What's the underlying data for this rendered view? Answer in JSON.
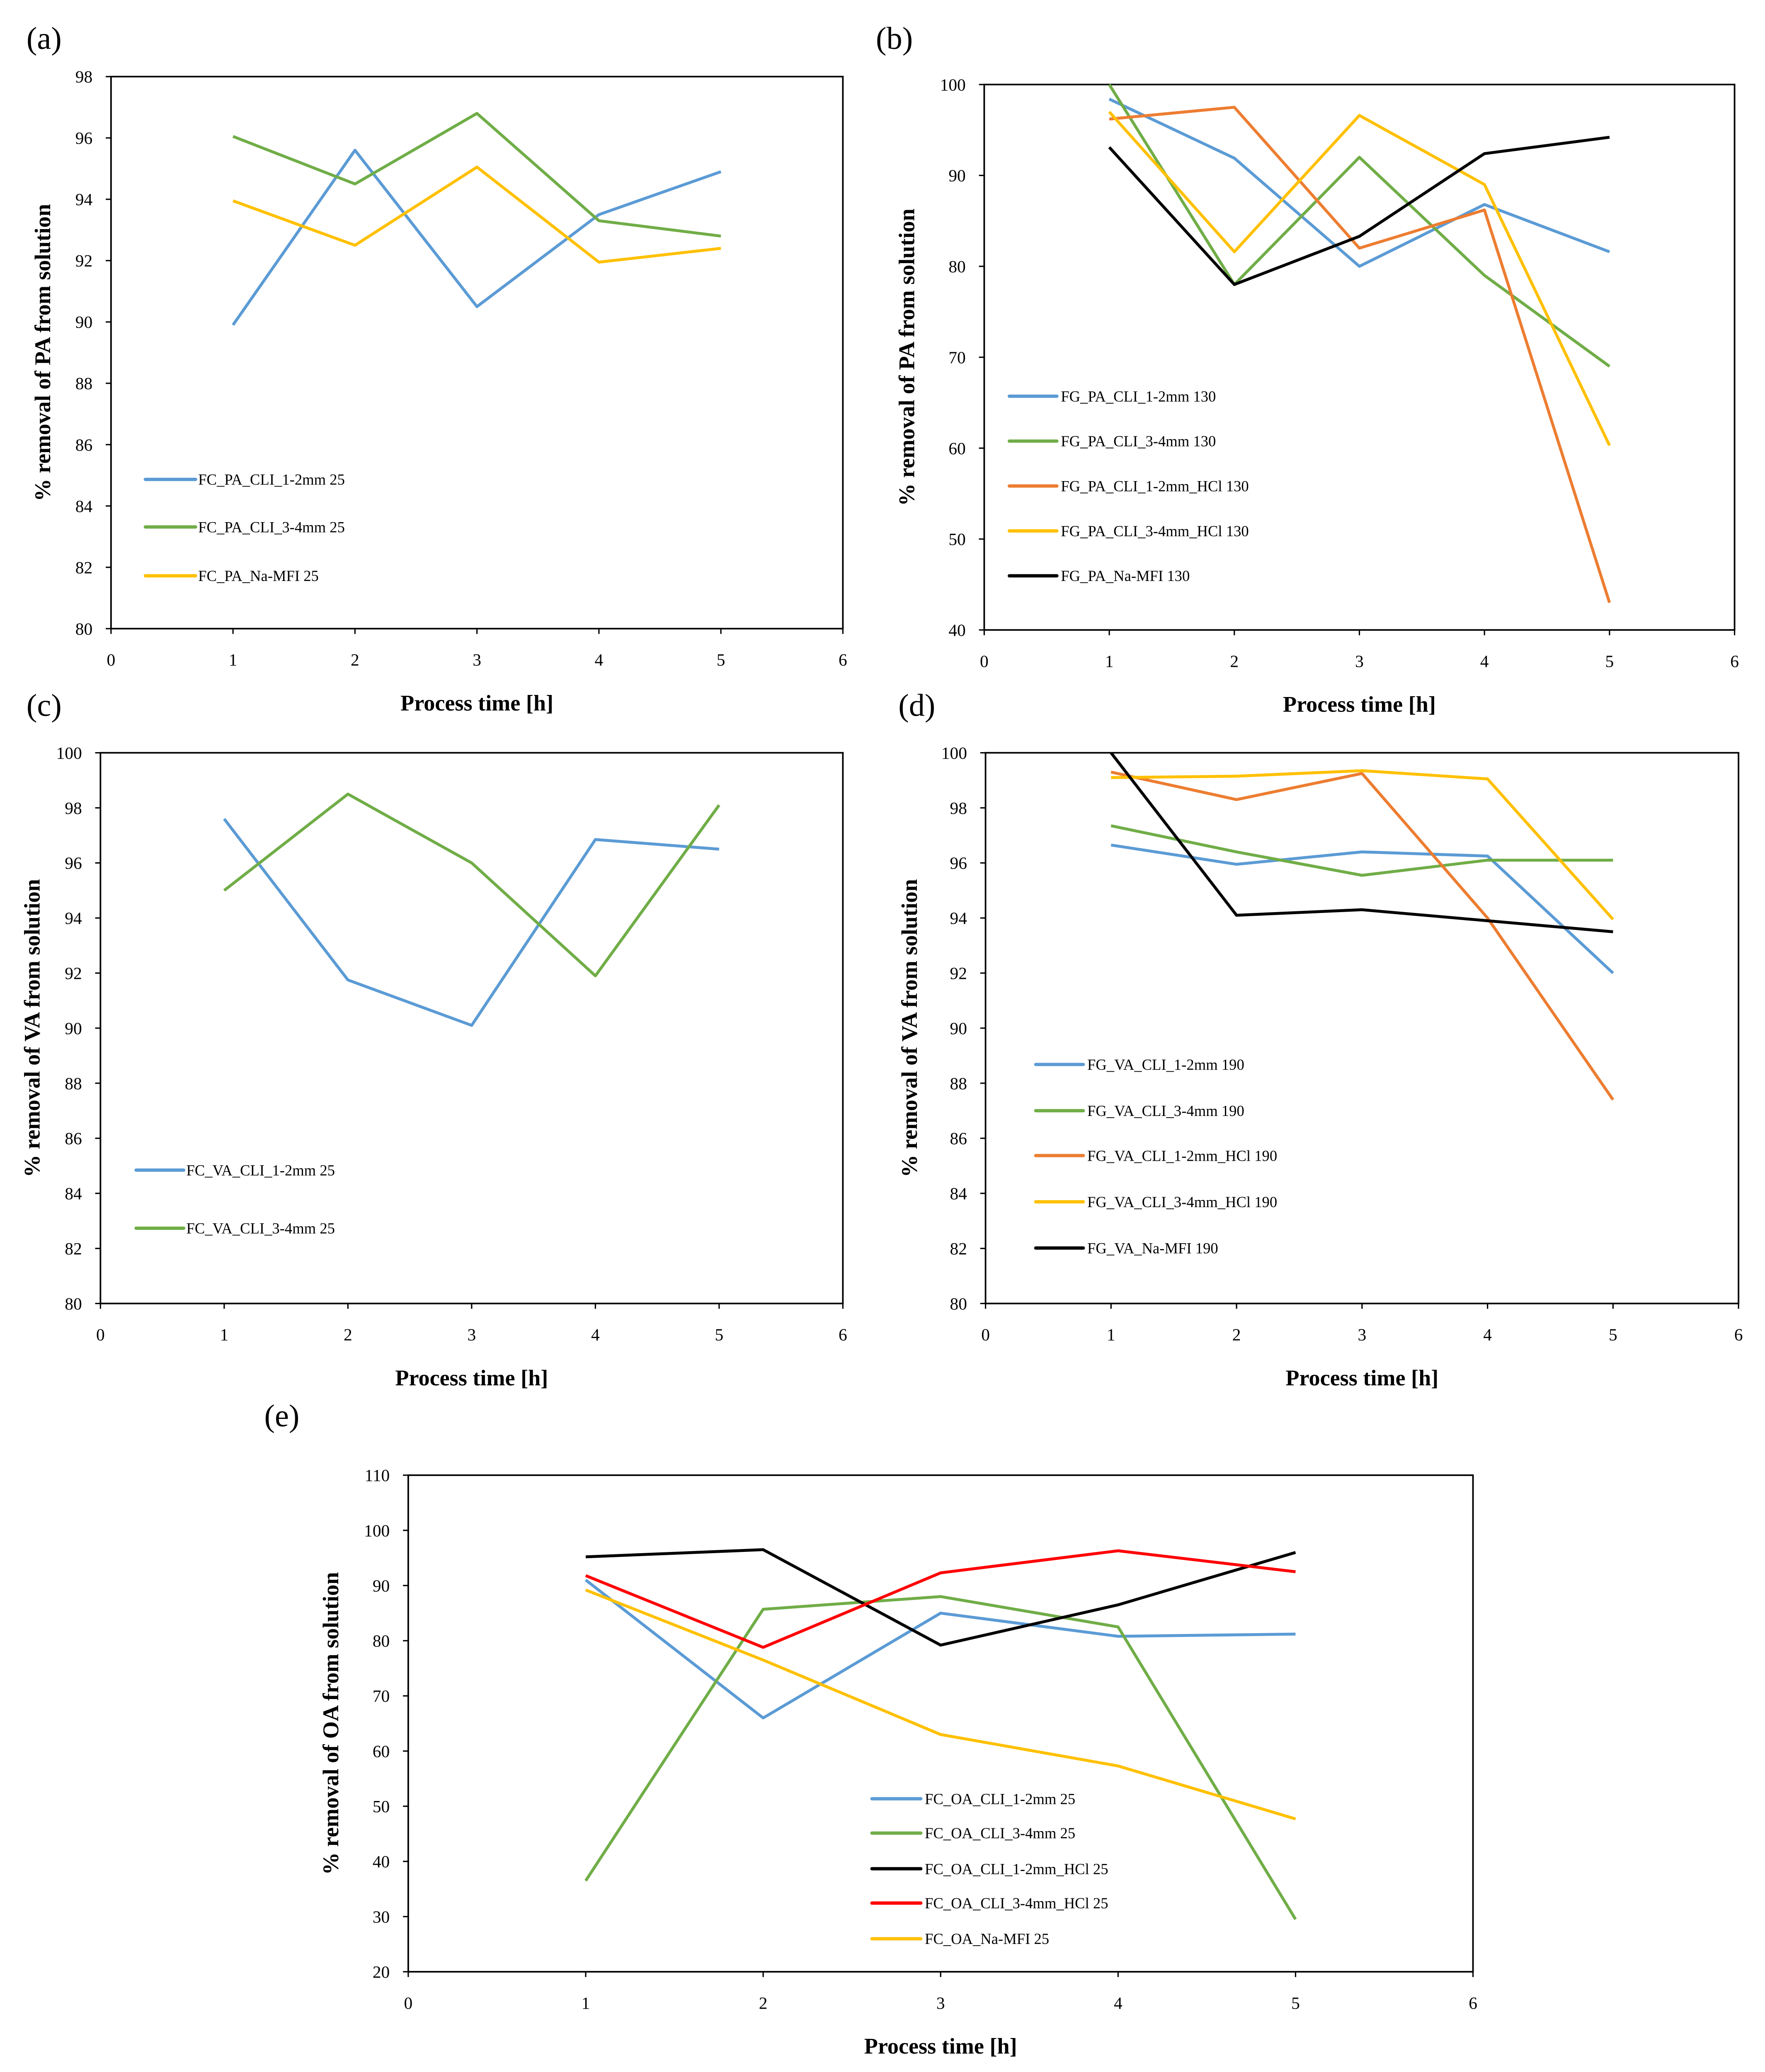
{
  "chart_data": [
    {
      "id": "a",
      "panel_label": "(a)",
      "type": "line",
      "xlabel": "Process time [h]",
      "ylabel": "% removal of PA from solution",
      "xlim": [
        0,
        6
      ],
      "ylim": [
        80,
        98
      ],
      "xticks": [
        0,
        1,
        2,
        3,
        4,
        5,
        6
      ],
      "yticks": [
        80,
        82,
        84,
        86,
        88,
        90,
        92,
        94,
        96,
        98
      ],
      "x": [
        1,
        2,
        3,
        4,
        5
      ],
      "series": [
        {
          "name": "FC_PA_CLI_1-2mm 25",
          "color": "#5B9BD5",
          "values": [
            89.9,
            95.6,
            90.5,
            93.5,
            94.9
          ]
        },
        {
          "name": "FC_PA_CLI_3-4mm 25",
          "color": "#70AD47",
          "values": [
            96.05,
            94.5,
            96.8,
            93.3,
            92.8
          ]
        },
        {
          "name": "FC_PA_Na-MFI 25",
          "color": "#FFC000",
          "values": [
            93.95,
            92.5,
            95.05,
            91.95,
            92.4
          ]
        }
      ]
    },
    {
      "id": "b",
      "panel_label": "(b)",
      "type": "line",
      "xlabel": "Process time [h]",
      "ylabel": "% removal of PA from solution",
      "xlim": [
        0,
        6
      ],
      "ylim": [
        40,
        100
      ],
      "xticks": [
        0,
        1,
        2,
        3,
        4,
        5,
        6
      ],
      "yticks": [
        40,
        50,
        60,
        70,
        80,
        90,
        100
      ],
      "x": [
        1,
        2,
        3,
        4,
        5
      ],
      "series": [
        {
          "name": "FG_PA_CLI_1-2mm 130",
          "color": "#5B9BD5",
          "values": [
            98.4,
            91.9,
            80.0,
            86.8,
            81.6
          ]
        },
        {
          "name": "FG_PA_CLI_3-4mm 130",
          "color": "#70AD47",
          "values": [
            100,
            78,
            92,
            79,
            69
          ]
        },
        {
          "name": "FG_PA_CLI_1-2mm_HCl 130",
          "color": "#ED7D31",
          "values": [
            96.2,
            97.5,
            82,
            86.2,
            43
          ]
        },
        {
          "name": "FG_PA_CLI_3-4mm_HCl 130",
          "color": "#FFC000",
          "values": [
            97,
            81.6,
            96.6,
            89,
            60.3
          ]
        },
        {
          "name": "FG_PA_Na-MFI 130",
          "color": "#000000",
          "values": [
            93.1,
            78,
            83.3,
            92.4,
            94.2
          ]
        }
      ]
    },
    {
      "id": "c",
      "panel_label": "(c)",
      "type": "line",
      "xlabel": "Process time [h]",
      "ylabel": "% removal of VA from solution",
      "xlim": [
        0,
        6
      ],
      "ylim": [
        80,
        100
      ],
      "xticks": [
        0,
        1,
        2,
        3,
        4,
        5,
        6
      ],
      "yticks": [
        80,
        82,
        84,
        86,
        88,
        90,
        92,
        94,
        96,
        98,
        100
      ],
      "x": [
        1,
        2,
        3,
        4,
        5
      ],
      "series": [
        {
          "name": "FC_VA_CLI_1-2mm 25",
          "color": "#5B9BD5",
          "values": [
            97.6,
            91.75,
            90.1,
            96.85,
            96.5
          ]
        },
        {
          "name": "FC_VA_CLI_3-4mm 25",
          "color": "#70AD47",
          "values": [
            95.0,
            98.5,
            96.0,
            91.9,
            98.1
          ]
        }
      ]
    },
    {
      "id": "d",
      "panel_label": "(d)",
      "type": "line",
      "xlabel": "Process time [h]",
      "ylabel": "% removal of VA from solution",
      "xlim": [
        0,
        6
      ],
      "ylim": [
        80,
        100
      ],
      "xticks": [
        0,
        1,
        2,
        3,
        4,
        5,
        6
      ],
      "yticks": [
        80,
        82,
        84,
        86,
        88,
        90,
        92,
        94,
        96,
        98,
        100
      ],
      "x": [
        1,
        2,
        3,
        4,
        5
      ],
      "series": [
        {
          "name": "FG_VA_CLI_1-2mm 190",
          "color": "#5B9BD5",
          "values": [
            96.65,
            95.95,
            96.4,
            96.25,
            92.0
          ]
        },
        {
          "name": "FG_VA_CLI_3-4mm 190",
          "color": "#70AD47",
          "values": [
            97.35,
            96.4,
            95.55,
            96.1,
            96.1
          ]
        },
        {
          "name": "FG_VA_CLI_1-2mm_HCl 190",
          "color": "#ED7D31",
          "values": [
            99.3,
            98.3,
            99.25,
            94.0,
            87.4
          ]
        },
        {
          "name": "FG_VA_CLI_3-4mm_HCl 190",
          "color": "#FFC000",
          "values": [
            99.1,
            99.15,
            99.35,
            99.05,
            93.95
          ]
        },
        {
          "name": "FG_VA_Na-MFI 190",
          "color": "#000000",
          "values": [
            100,
            94.1,
            94.3,
            93.9,
            93.5
          ]
        }
      ]
    },
    {
      "id": "e",
      "panel_label": "(e)",
      "type": "line",
      "xlabel": "Process time [h]",
      "ylabel": "% removal of OA from solution",
      "xlim": [
        0,
        6
      ],
      "ylim": [
        20,
        110
      ],
      "xticks": [
        0,
        1,
        2,
        3,
        4,
        5,
        6
      ],
      "yticks": [
        20,
        30,
        40,
        50,
        60,
        70,
        80,
        90,
        100,
        110
      ],
      "x": [
        1,
        2,
        3,
        4,
        5
      ],
      "series": [
        {
          "name": "FC_OA_CLI_1-2mm 25",
          "color": "#5B9BD5",
          "values": [
            91,
            66,
            85,
            80.8,
            81.2
          ]
        },
        {
          "name": "FC_OA_CLI_3-4mm 25",
          "color": "#70AD47",
          "values": [
            36.5,
            85.7,
            88,
            82.5,
            29.5
          ]
        },
        {
          "name": "FC_OA_CLI_1-2mm_HCl 25",
          "color": "#000000",
          "values": [
            95.2,
            96.5,
            79.2,
            86.5,
            96
          ]
        },
        {
          "name": "FC_OA_CLI_3-4mm_HCl 25",
          "color": "#FF0000",
          "values": [
            91.8,
            78.8,
            92.3,
            96.3,
            92.5
          ]
        },
        {
          "name": "FC_OA_Na-MFI 25",
          "color": "#FFC000",
          "values": [
            89.2,
            76.5,
            63,
            57.3,
            47.7
          ]
        }
      ]
    }
  ]
}
